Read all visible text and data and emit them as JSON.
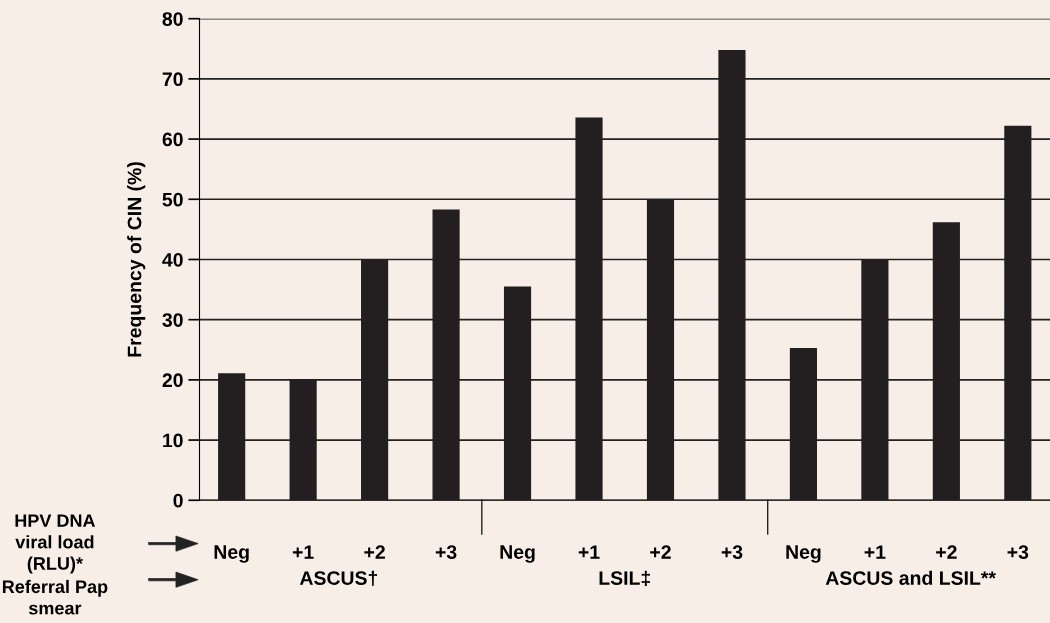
{
  "chart_data": {
    "type": "bar",
    "ylabel": "Frequency of CIN (%)",
    "categories": [
      "Neg",
      "+1",
      "+2",
      "+3",
      "Neg",
      "+1",
      "+2",
      "+3",
      "Neg",
      "+1",
      "+2",
      "+3"
    ],
    "values": [
      21.1,
      20,
      40,
      48.3,
      35.5,
      63.6,
      50,
      74.8,
      25.3,
      40,
      46.2,
      62.2
    ],
    "color": "#231f20",
    "ylim": [
      0,
      80
    ],
    "yticks": [
      0,
      10,
      20,
      30,
      40,
      50,
      60,
      70,
      80
    ],
    "grid": "y",
    "legend": false,
    "annotations": [
      "HPV DNA viral load (RLU)*",
      "Referral Pap smear",
      "ASCUS†",
      "LSIL‡",
      "ASCUS and LSIL**"
    ]
  }
}
